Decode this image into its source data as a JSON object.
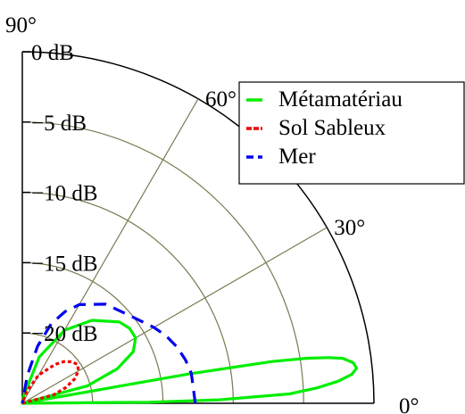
{
  "chart_data": {
    "type": "polar",
    "radial_axis": {
      "unit": "dB",
      "range": [
        -25,
        0
      ],
      "ticks": [
        0,
        -5,
        -10,
        -15,
        -20
      ],
      "tick_labels": [
        "0 dB",
        "−5 dB",
        "−10 dB",
        "−15 dB",
        "−20 dB"
      ]
    },
    "angular_axis": {
      "range_deg": [
        0,
        90
      ],
      "ticks": [
        0,
        30,
        60,
        90
      ],
      "tick_labels": [
        "0°",
        "30°",
        "60°",
        "90°"
      ]
    },
    "grid": true,
    "legend": {
      "position": "top-right",
      "entries": [
        "Métamatériau",
        "Sol Sableux",
        "Mer"
      ]
    },
    "series": [
      {
        "name": "Métamatériau",
        "color": "#00ee00",
        "dash": "solid",
        "points": [
          [
            0,
            -25
          ],
          [
            0.5,
            -16
          ],
          [
            1,
            -11
          ],
          [
            2,
            -6
          ],
          [
            3,
            -4
          ],
          [
            4,
            -2.5
          ],
          [
            5,
            -1.5
          ],
          [
            6,
            -1.1
          ],
          [
            7,
            -1.3
          ],
          [
            8,
            -2
          ],
          [
            8.5,
            -3
          ],
          [
            9,
            -4.5
          ],
          [
            9.5,
            -7
          ],
          [
            10,
            -13
          ],
          [
            10.5,
            -25
          ],
          [
            11.5,
            -25
          ],
          [
            15,
            -20.2
          ],
          [
            20,
            -17.8
          ],
          [
            25,
            -16.3
          ],
          [
            30,
            -15.7
          ],
          [
            35,
            -15.7
          ],
          [
            40,
            -16
          ],
          [
            50,
            -17.3
          ],
          [
            60,
            -19
          ],
          [
            70,
            -21.5
          ],
          [
            80,
            -24.5
          ],
          [
            90,
            -25
          ]
        ]
      },
      {
        "name": "Sol Sableux",
        "color": "#ee0000",
        "dash": "dotted",
        "points": [
          [
            0,
            -25
          ],
          [
            15,
            -22.7
          ],
          [
            20,
            -21.7
          ],
          [
            25,
            -20.9
          ],
          [
            30,
            -20.4
          ],
          [
            35,
            -20.2
          ],
          [
            40,
            -20.4
          ],
          [
            45,
            -20.8
          ],
          [
            50,
            -21.4
          ],
          [
            60,
            -22.7
          ],
          [
            70,
            -24.1
          ],
          [
            80,
            -25
          ],
          [
            90,
            -25
          ]
        ]
      },
      {
        "name": "Mer",
        "color": "#0000ee",
        "dash": "dashed",
        "points": [
          [
            0,
            -12.7
          ],
          [
            10,
            -12.8
          ],
          [
            15,
            -13
          ],
          [
            20,
            -13.3
          ],
          [
            25,
            -13.7
          ],
          [
            30,
            -14.2
          ],
          [
            40,
            -15.2
          ],
          [
            50,
            -15.8
          ],
          [
            60,
            -16.9
          ],
          [
            65,
            -17.8
          ],
          [
            70,
            -19
          ],
          [
            75,
            -20.8
          ],
          [
            80,
            -23
          ],
          [
            85,
            -25
          ],
          [
            90,
            -25
          ]
        ]
      }
    ]
  }
}
